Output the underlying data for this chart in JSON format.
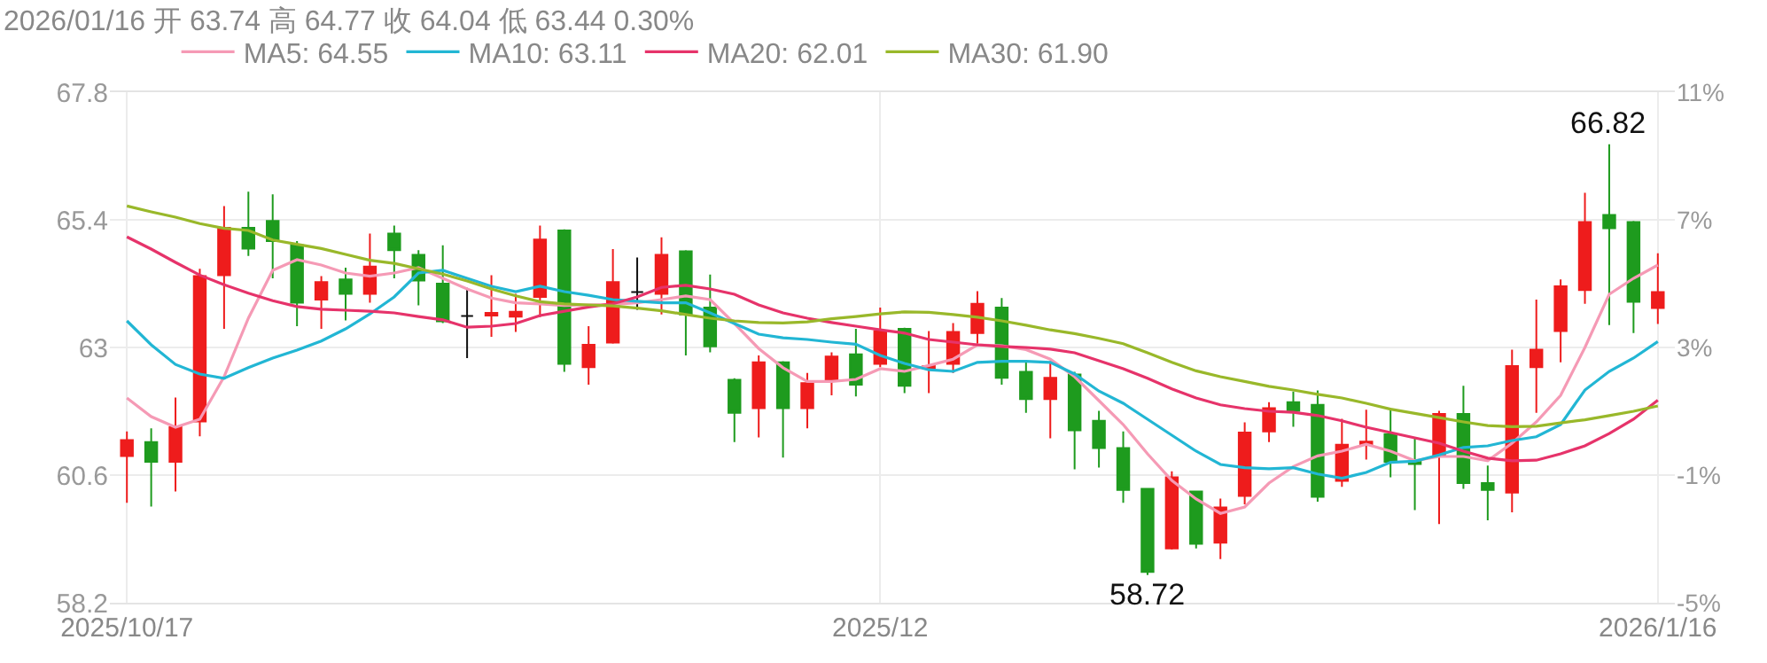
{
  "chart_data": {
    "type": "candlestick",
    "title": "2026/01/16 开 63.74 高 64.77 收 64.04 低 63.44 0.30%",
    "categories": [
      "2025/10/17",
      null,
      null,
      null,
      null,
      null,
      null,
      null,
      null,
      null,
      null,
      null,
      null,
      null,
      null,
      null,
      null,
      null,
      null,
      null,
      null,
      null,
      null,
      null,
      null,
      null,
      null,
      null,
      null,
      null,
      null,
      "2025/12",
      null,
      null,
      null,
      null,
      null,
      null,
      null,
      null,
      null,
      null,
      null,
      null,
      null,
      null,
      null,
      null,
      null,
      null,
      null,
      null,
      null,
      null,
      null,
      null,
      null,
      null,
      null,
      null,
      null,
      null,
      null,
      "2026/1/16"
    ],
    "ohlc": [
      [
        60.96,
        61.42,
        60.08,
        61.26
      ],
      [
        61.22,
        61.48,
        60.01,
        60.85
      ],
      [
        60.85,
        62.06,
        60.29,
        61.5
      ],
      [
        61.61,
        64.48,
        61.33,
        64.34
      ],
      [
        64.36,
        65.66,
        63.35,
        65.25
      ],
      [
        65.25,
        65.93,
        64.72,
        64.86
      ],
      [
        65.38,
        65.88,
        64.3,
        65.0
      ],
      [
        64.92,
        65.0,
        63.4,
        63.84
      ],
      [
        63.9,
        64.34,
        63.35,
        64.23
      ],
      [
        64.28,
        64.5,
        63.51,
        64.01
      ],
      [
        64.01,
        65.14,
        63.84,
        64.52
      ],
      [
        65.14,
        65.29,
        64.3,
        64.83
      ],
      [
        64.74,
        64.83,
        63.79,
        64.26
      ],
      [
        64.2,
        64.92,
        63.46,
        63.49
      ],
      [
        63.59,
        64.12,
        62.8,
        63.59
      ],
      [
        63.6,
        64.36,
        63.2,
        63.65
      ],
      [
        63.58,
        64.01,
        63.29,
        63.67
      ],
      [
        63.95,
        65.29,
        63.57,
        65.03
      ],
      [
        65.2,
        65.22,
        62.54,
        62.69
      ],
      [
        62.63,
        63.4,
        62.3,
        63.05
      ],
      [
        63.09,
        64.85,
        63.07,
        64.23
      ],
      [
        64.04,
        64.69,
        63.71,
        64.04
      ],
      [
        64.01,
        65.07,
        63.62,
        64.74
      ],
      [
        64.81,
        64.83,
        62.85,
        63.62
      ],
      [
        63.75,
        64.37,
        62.91,
        63.02
      ],
      [
        62.39,
        62.42,
        61.22,
        61.77
      ],
      [
        61.86,
        62.85,
        61.31,
        62.72
      ],
      [
        62.72,
        62.74,
        60.93,
        61.86
      ],
      [
        61.86,
        62.52,
        61.48,
        62.33
      ],
      [
        62.39,
        62.91,
        62.1,
        62.83
      ],
      [
        62.87,
        63.35,
        62.08,
        62.3
      ],
      [
        62.69,
        63.75,
        62.63,
        63.31
      ],
      [
        63.35,
        63.37,
        62.14,
        62.28
      ],
      [
        62.61,
        63.31,
        62.14,
        62.65
      ],
      [
        62.69,
        63.46,
        62.52,
        63.29
      ],
      [
        63.27,
        64.06,
        63.05,
        63.82
      ],
      [
        63.75,
        63.93,
        62.3,
        62.43
      ],
      [
        62.54,
        62.72,
        61.77,
        62.03
      ],
      [
        62.03,
        62.74,
        61.29,
        62.43
      ],
      [
        62.49,
        62.54,
        60.71,
        61.44
      ],
      [
        61.62,
        61.81,
        60.74,
        61.11
      ],
      [
        61.11,
        61.42,
        60.08,
        60.32
      ],
      [
        60.34,
        60.36,
        58.72,
        58.78
      ],
      [
        59.22,
        60.67,
        59.2,
        60.56
      ],
      [
        60.29,
        60.31,
        59.22,
        59.31
      ],
      [
        59.33,
        60.16,
        59.02,
        59.99
      ],
      [
        60.21,
        61.59,
        60.05,
        61.4
      ],
      [
        61.42,
        61.97,
        61.22,
        61.86
      ],
      [
        61.97,
        62.17,
        61.51,
        61.81
      ],
      [
        61.92,
        62.19,
        60.1,
        60.19
      ],
      [
        60.49,
        61.66,
        60.38,
        61.17
      ],
      [
        61.17,
        61.83,
        60.89,
        61.23
      ],
      [
        61.37,
        61.86,
        60.56,
        60.85
      ],
      [
        60.85,
        61.29,
        59.94,
        60.81
      ],
      [
        60.96,
        61.81,
        59.68,
        61.75
      ],
      [
        61.75,
        62.28,
        60.34,
        60.45
      ],
      [
        60.45,
        60.78,
        59.75,
        60.32
      ],
      [
        60.27,
        62.96,
        59.9,
        62.65
      ],
      [
        62.63,
        63.9,
        61.77,
        62.96
      ],
      [
        63.31,
        64.28,
        62.72,
        64.15
      ],
      [
        64.08,
        65.91,
        63.82,
        65.36
      ],
      [
        65.49,
        66.82,
        63.42,
        65.24
      ],
      [
        65.36,
        65.38,
        63.27,
        63.86
      ],
      [
        63.74,
        64.77,
        63.44,
        64.04
      ]
    ],
    "colors": [
      "#ee1c1c",
      "#1e9b1e",
      "#ee1c1c",
      "#ee1c1c",
      "#ee1c1c",
      "#1e9b1e",
      "#1e9b1e",
      "#1e9b1e",
      "#ee1c1c",
      "#1e9b1e",
      "#ee1c1c",
      "#1e9b1e",
      "#1e9b1e",
      "#1e9b1e",
      "#111111",
      "#ee1c1c",
      "#ee1c1c",
      "#ee1c1c",
      "#1e9b1e",
      "#ee1c1c",
      "#ee1c1c",
      "#111111",
      "#ee1c1c",
      "#1e9b1e",
      "#1e9b1e",
      "#1e9b1e",
      "#ee1c1c",
      "#1e9b1e",
      "#ee1c1c",
      "#ee1c1c",
      "#1e9b1e",
      "#ee1c1c",
      "#1e9b1e",
      "#ee1c1c",
      "#ee1c1c",
      "#ee1c1c",
      "#1e9b1e",
      "#1e9b1e",
      "#ee1c1c",
      "#1e9b1e",
      "#1e9b1e",
      "#1e9b1e",
      "#1e9b1e",
      "#ee1c1c",
      "#1e9b1e",
      "#ee1c1c",
      "#ee1c1c",
      "#ee1c1c",
      "#1e9b1e",
      "#1e9b1e",
      "#ee1c1c",
      "#ee1c1c",
      "#1e9b1e",
      "#1e9b1e",
      "#ee1c1c",
      "#1e9b1e",
      "#1e9b1e",
      "#ee1c1c",
      "#ee1c1c",
      "#ee1c1c",
      "#ee1c1c",
      "#1e9b1e",
      "#1e9b1e",
      "#ee1c1c"
    ],
    "series": [
      {
        "type": "line",
        "name": "MA5: 64.55",
        "color": "#f59ab5",
        "values": [
          62.05,
          61.7,
          61.5,
          61.65,
          62.45,
          63.55,
          64.45,
          64.65,
          64.55,
          64.4,
          64.34,
          64.4,
          64.5,
          64.3,
          64.1,
          63.93,
          63.84,
          63.82,
          63.79,
          63.8,
          63.81,
          63.84,
          63.9,
          63.97,
          63.9,
          63.45,
          62.98,
          62.62,
          62.36,
          62.36,
          62.4,
          62.6,
          62.55,
          62.66,
          62.78,
          63.05,
          63.03,
          62.96,
          62.78,
          62.45,
          62.0,
          61.55,
          61.0,
          60.5,
          60.15,
          59.88,
          60.0,
          60.45,
          60.76,
          60.96,
          61.05,
          61.18,
          61.05,
          60.87,
          60.95,
          60.95,
          60.87,
          61.2,
          61.6,
          62.1,
          63.0,
          64.0,
          64.3,
          64.55
        ]
      },
      {
        "type": "line",
        "name": "MA10: 63.11",
        "color": "#22b6d4",
        "values": [
          63.5,
          63.05,
          62.68,
          62.5,
          62.42,
          62.62,
          62.8,
          62.95,
          63.12,
          63.35,
          63.63,
          63.95,
          64.4,
          64.45,
          64.3,
          64.15,
          64.05,
          64.15,
          64.05,
          63.98,
          63.9,
          63.87,
          63.84,
          63.84,
          63.65,
          63.45,
          63.25,
          63.18,
          63.15,
          63.1,
          63.06,
          62.85,
          62.7,
          62.58,
          62.55,
          62.72,
          62.74,
          62.74,
          62.72,
          62.5,
          62.18,
          61.95,
          61.65,
          61.35,
          61.05,
          60.8,
          60.74,
          60.72,
          60.74,
          60.62,
          60.54,
          60.65,
          60.84,
          60.86,
          60.98,
          61.12,
          61.15,
          61.25,
          61.32,
          61.55,
          62.2,
          62.55,
          62.8,
          63.11
        ]
      },
      {
        "type": "line",
        "name": "MA20: 62.01",
        "color": "#e6336a",
        "values": [
          65.08,
          64.85,
          64.6,
          64.36,
          64.18,
          64.02,
          63.88,
          63.77,
          63.72,
          63.7,
          63.68,
          63.65,
          63.58,
          63.52,
          63.38,
          63.4,
          63.45,
          63.6,
          63.68,
          63.76,
          63.82,
          63.95,
          64.13,
          64.17,
          64.1,
          64.0,
          63.8,
          63.65,
          63.55,
          63.47,
          63.4,
          63.33,
          63.27,
          63.15,
          63.1,
          63.05,
          63.02,
          63.0,
          62.97,
          62.9,
          62.75,
          62.6,
          62.42,
          62.22,
          62.05,
          61.92,
          61.85,
          61.8,
          61.78,
          61.72,
          61.62,
          61.5,
          61.4,
          61.3,
          61.2,
          61.05,
          60.92,
          60.87,
          60.88,
          61.0,
          61.15,
          61.38,
          61.65,
          62.01
        ]
      },
      {
        "type": "line",
        "name": "MA30: 61.90",
        "color": "#99b82a",
        "values": [
          65.66,
          65.55,
          65.45,
          65.33,
          65.24,
          65.2,
          65.02,
          64.94,
          64.86,
          64.75,
          64.64,
          64.58,
          64.48,
          64.38,
          64.25,
          64.1,
          63.97,
          63.86,
          63.82,
          63.8,
          63.78,
          63.74,
          63.69,
          63.62,
          63.55,
          63.5,
          63.47,
          63.46,
          63.48,
          63.54,
          63.58,
          63.63,
          63.67,
          63.66,
          63.62,
          63.57,
          63.5,
          63.42,
          63.33,
          63.26,
          63.17,
          63.07,
          62.9,
          62.72,
          62.56,
          62.45,
          62.36,
          62.27,
          62.2,
          62.12,
          62.05,
          61.95,
          61.84,
          61.76,
          61.68,
          61.6,
          61.53,
          61.51,
          61.52,
          61.58,
          61.64,
          61.72,
          61.8,
          61.9
        ]
      }
    ],
    "ylim": [
      58.2,
      67.8
    ],
    "yticks": [
      58.2,
      60.6,
      63,
      65.4,
      67.8
    ],
    "y2lim": [
      -5,
      11
    ],
    "y2ticks": [
      {
        "value": -5,
        "label": "-5%"
      },
      {
        "value": -1,
        "label": "-1%"
      },
      {
        "value": 3,
        "label": "3%"
      },
      {
        "value": 7,
        "label": "7%"
      },
      {
        "value": 11,
        "label": "11%"
      }
    ],
    "annotations": [
      {
        "text": "66.82",
        "y": 66.82
      },
      {
        "text": "58.72",
        "y": 58.72
      }
    ],
    "grid": true,
    "legend": "top left"
  }
}
